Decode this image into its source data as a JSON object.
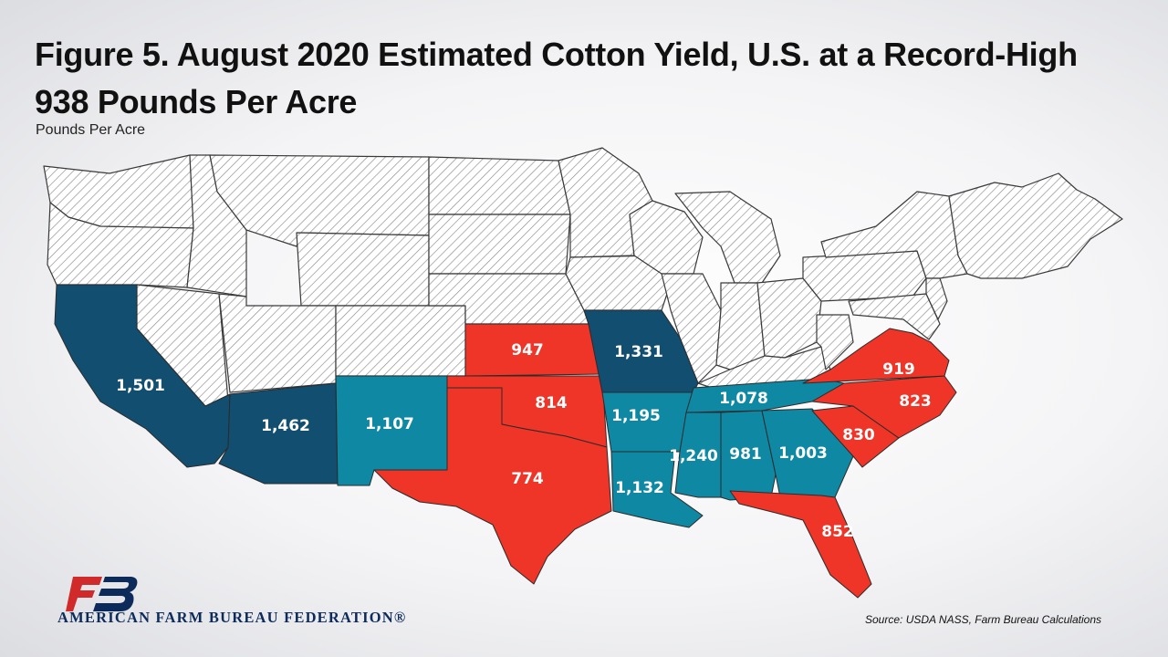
{
  "title": "Figure 5. August 2020 Estimated Cotton Yield, U.S. at a Record-High 938 Pounds Per Acre",
  "subtitle": "Pounds Per Acre",
  "source": "Source:  USDA  NASS,  Farm Bureau Calculations",
  "organization": "AMERICAN FARM BUREAU FEDERATION®",
  "logo_mark": "FB",
  "colors": {
    "red_category": "#ee3527",
    "teal_category": "#0f88a3",
    "navy_category": "#124e70",
    "no_data": "hatched-white"
  },
  "states": [
    {
      "state": "CA",
      "value": "1,501",
      "color": "#124e70"
    },
    {
      "state": "AZ",
      "value": "1,462",
      "color": "#124e70"
    },
    {
      "state": "NM",
      "value": "1,107",
      "color": "#0f88a3"
    },
    {
      "state": "KS",
      "value": "947",
      "color": "#ee3527"
    },
    {
      "state": "OK",
      "value": "814",
      "color": "#ee3527"
    },
    {
      "state": "TX",
      "value": "774",
      "color": "#ee3527"
    },
    {
      "state": "MO",
      "value": "1,331",
      "color": "#124e70"
    },
    {
      "state": "AR",
      "value": "1,195",
      "color": "#0f88a3"
    },
    {
      "state": "LA",
      "value": "1,132",
      "color": "#0f88a3"
    },
    {
      "state": "MS",
      "value": "1,240",
      "color": "#0f88a3"
    },
    {
      "state": "AL",
      "value": "981",
      "color": "#0f88a3"
    },
    {
      "state": "TN",
      "value": "1,078",
      "color": "#0f88a3"
    },
    {
      "state": "GA",
      "value": "1,003",
      "color": "#0f88a3"
    },
    {
      "state": "FL",
      "value": "852",
      "color": "#ee3527"
    },
    {
      "state": "SC",
      "value": "830",
      "color": "#ee3527"
    },
    {
      "state": "NC",
      "value": "823",
      "color": "#ee3527"
    },
    {
      "state": "VA",
      "value": "919",
      "color": "#ee3527"
    }
  ]
}
